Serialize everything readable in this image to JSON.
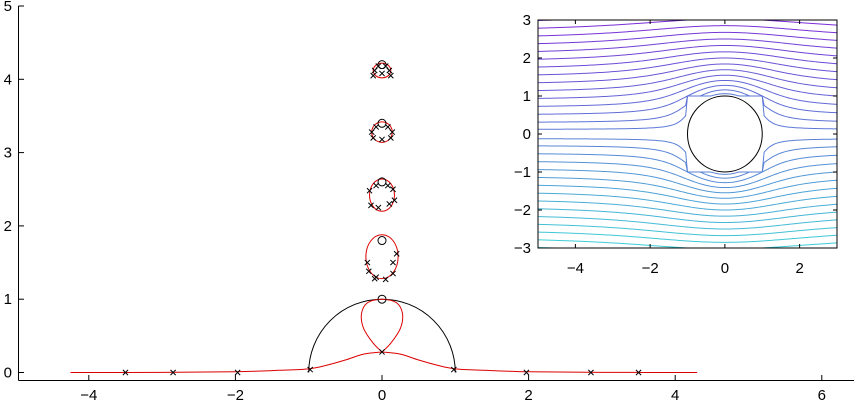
{
  "chart_data": [
    {
      "type": "line",
      "title": "",
      "xlabel": "",
      "ylabel": "",
      "xlim": [
        -4.8,
        6.5
      ],
      "ylim": [
        -0.1,
        5
      ],
      "xticks": [
        -4,
        -2,
        0,
        2,
        4,
        6
      ],
      "yticks": [
        0,
        1,
        2,
        3,
        4,
        5
      ],
      "xtick_labels": [
        "−4",
        "−2",
        "0",
        "2",
        "4",
        "6"
      ],
      "ytick_labels": [
        "0",
        "1",
        "2",
        "3",
        "4",
        "5"
      ],
      "grid": false,
      "axes_box": "left-bottom only",
      "series": [
        {
          "kind": "black-semicircle",
          "color": "#000000",
          "center": [
            0,
            0
          ],
          "radius": 1
        },
        {
          "kind": "red-curve",
          "color": "#dd0000",
          "left_tail": [
            [
              -4.25,
              0.0
            ],
            [
              -3.0,
              0.002
            ],
            [
              -2.0,
              0.01
            ],
            [
              -1.4,
              0.03
            ],
            [
              -1.0,
              0.05
            ],
            [
              -0.75,
              0.1
            ],
            [
              -0.5,
              0.17
            ],
            [
              -0.25,
              0.25
            ],
            [
              0.0,
              0.28
            ]
          ],
          "right_tail": [
            [
              0.0,
              0.28
            ],
            [
              0.25,
              0.25
            ],
            [
              0.5,
              0.17
            ],
            [
              0.75,
              0.1
            ],
            [
              1.0,
              0.05
            ],
            [
              1.4,
              0.03
            ],
            [
              2.0,
              0.01
            ],
            [
              3.0,
              0.002
            ],
            [
              4.3,
              0.0
            ]
          ],
          "lobe": [
            [
              0.0,
              0.28
            ],
            [
              0.12,
              0.4
            ],
            [
              0.25,
              0.6
            ],
            [
              0.28,
              0.8
            ],
            [
              0.2,
              0.95
            ],
            [
              0.0,
              1.0
            ],
            [
              -0.2,
              0.95
            ],
            [
              -0.28,
              0.8
            ],
            [
              -0.25,
              0.6
            ],
            [
              -0.12,
              0.4
            ],
            [
              0.0,
              0.28
            ]
          ],
          "loops": [
            {
              "center": [
                0,
                1.58
              ],
              "rx": 0.22,
              "ry": 0.3
            },
            {
              "center": [
                0,
                2.42
              ],
              "rx": 0.17,
              "ry": 0.22
            },
            {
              "center": [
                0,
                3.28
              ],
              "rx": 0.14,
              "ry": 0.14
            },
            {
              "center": [
                0,
                4.12
              ],
              "rx": 0.12,
              "ry": 0.1
            }
          ]
        },
        {
          "kind": "circle-markers",
          "marker": "o",
          "points": [
            [
              0,
              1.0
            ],
            [
              0,
              1.8
            ],
            [
              0,
              2.6
            ],
            [
              0,
              3.4
            ],
            [
              0,
              4.2
            ]
          ]
        },
        {
          "kind": "x-markers",
          "marker": "x",
          "points": [
            [
              -3.5,
              0.0
            ],
            [
              -2.85,
              0.0
            ],
            [
              -1.97,
              0.0
            ],
            [
              -0.98,
              0.04
            ],
            [
              0.98,
              0.04
            ],
            [
              1.97,
              0.0
            ],
            [
              2.85,
              0.0
            ],
            [
              3.5,
              0.0
            ],
            [
              0.0,
              0.28
            ],
            [
              -0.18,
              1.38
            ],
            [
              -0.08,
              1.3
            ],
            [
              0.05,
              1.27
            ],
            [
              0.15,
              1.35
            ],
            [
              0.2,
              1.62
            ],
            [
              0.15,
              1.5
            ],
            [
              -0.2,
              1.5
            ],
            [
              -0.1,
              1.28
            ],
            [
              -0.15,
              2.28
            ],
            [
              -0.05,
              2.25
            ],
            [
              0.1,
              2.3
            ],
            [
              0.17,
              2.35
            ],
            [
              -0.17,
              2.48
            ],
            [
              0.15,
              2.5
            ],
            [
              -0.08,
              2.55
            ],
            [
              0.08,
              2.55
            ],
            [
              -0.12,
              3.2
            ],
            [
              0.12,
              3.2
            ],
            [
              -0.14,
              3.28
            ],
            [
              0.14,
              3.28
            ],
            [
              -0.08,
              3.35
            ],
            [
              0.08,
              3.35
            ],
            [
              0.0,
              3.18
            ],
            [
              -0.12,
              4.05
            ],
            [
              0.12,
              4.05
            ],
            [
              -0.1,
              4.12
            ],
            [
              0.1,
              4.12
            ],
            [
              -0.05,
              4.18
            ],
            [
              0.05,
              4.18
            ],
            [
              0.0,
              4.08
            ]
          ]
        }
      ]
    },
    {
      "type": "line",
      "title": "",
      "xlabel": "",
      "ylabel": "",
      "xlim": [
        -5,
        3
      ],
      "ylim": [
        -3,
        3
      ],
      "xticks": [
        -4,
        -2,
        0,
        2
      ],
      "yticks": [
        -3,
        -2,
        -1,
        0,
        1,
        2,
        3
      ],
      "xtick_labels": [
        "−4",
        "−2",
        "0",
        "2"
      ],
      "ytick_labels": [
        "−3",
        "−2",
        "−1",
        "0",
        "1",
        "2",
        "3"
      ],
      "grid": false,
      "cylinder": {
        "center": [
          0,
          0
        ],
        "radius": 1
      },
      "streamline_offsets": [
        -2.9,
        -2.7,
        -2.5,
        -2.3,
        -2.1,
        -1.9,
        -1.7,
        -1.5,
        -1.3,
        -1.1,
        -0.9,
        -0.7,
        -0.5,
        -0.3,
        -0.12,
        0.12,
        0.3,
        0.5,
        0.7,
        0.9,
        1.1,
        1.3,
        1.5,
        1.7,
        1.9,
        2.1,
        2.3,
        2.5,
        2.7,
        2.9
      ],
      "colormap": [
        "#7c24d6",
        "#3bd6d6"
      ]
    }
  ]
}
